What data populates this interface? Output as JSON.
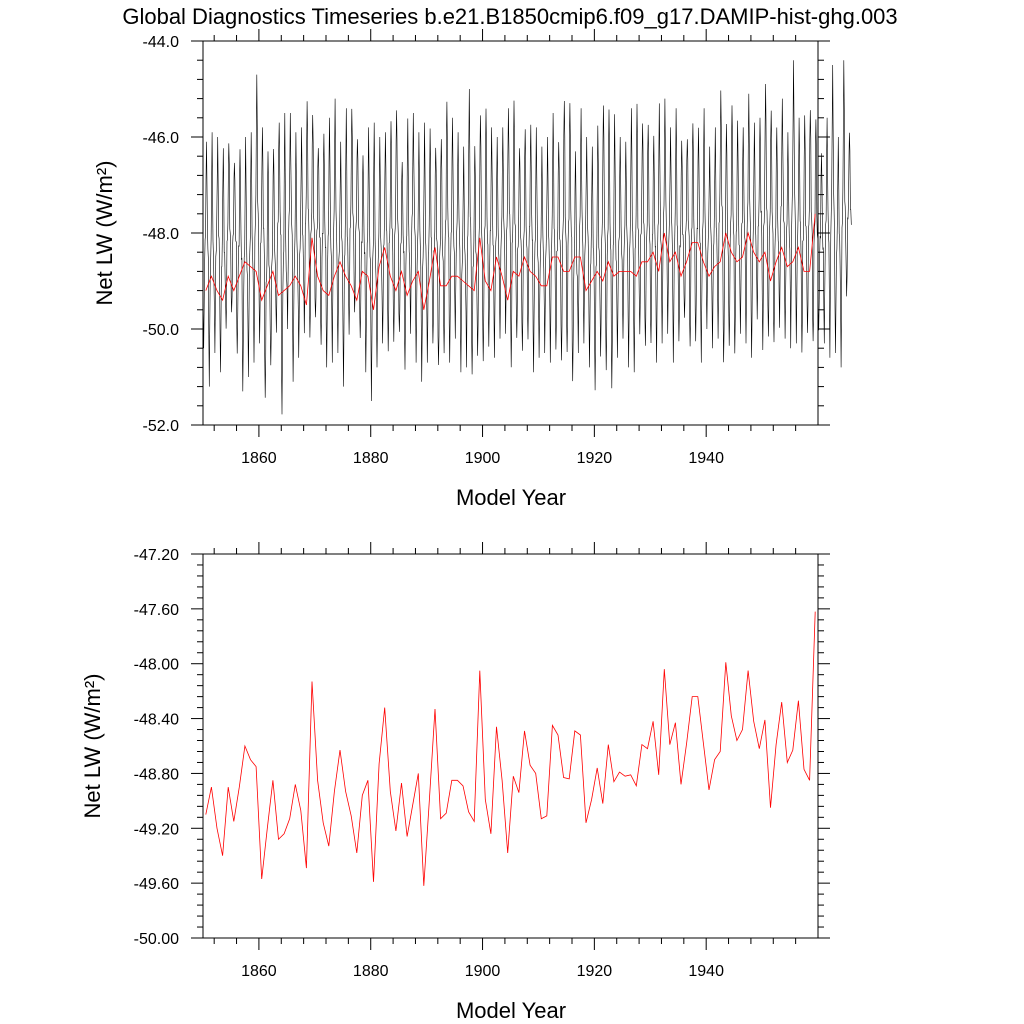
{
  "title": "Global Diagnostics Timeseries b.e21.B1850cmip6.f09_g17.DAMIP-hist-ghg.003",
  "colors": {
    "monthly": "#000000",
    "annual": "#ff0000"
  },
  "chart_data": [
    {
      "type": "line",
      "panel": "top",
      "xlabel": "Model Year",
      "ylabel": "Net LW (W/m²)",
      "xlim": [
        1850,
        1960
      ],
      "ylim": [
        -52.0,
        -44.0
      ],
      "x_ticks": [
        1860,
        1880,
        1900,
        1920,
        1940
      ],
      "x_tick_labels": [
        "1860",
        "1880",
        "1900",
        "1920",
        "1940"
      ],
      "y_ticks": [
        -52.0,
        -50.0,
        -48.0,
        -46.0,
        -44.0
      ],
      "y_tick_labels": [
        "-52.0",
        "-50.0",
        "-48.0",
        "-46.0",
        "-44.0"
      ],
      "series": [
        {
          "color": "#000000",
          "x_start": 1850.04,
          "x_step": 0.0833333,
          "seasonal_max": [
            -46.1,
            -45.9,
            -46.0,
            -46.2,
            -46.0,
            -46.4,
            -46.2,
            -46.0,
            -45.9,
            -44.7,
            -45.8,
            -46.2,
            -46.1,
            -45.6,
            -45.5,
            -45.5,
            -45.9,
            -45.8,
            -45.2,
            -45.4,
            -46.1,
            -45.9,
            -45.6,
            -45.2,
            -46.1,
            -45.4,
            -45.3,
            -45.9,
            -46.3,
            -45.8,
            -45.7,
            -46.0,
            -45.9,
            -45.6,
            -45.3,
            -46.4,
            -45.6,
            -45.5,
            -45.9,
            -45.7,
            -45.8,
            -46.1,
            -45.9,
            -45.2,
            -45.6,
            -45.9,
            -46.2,
            -45.0,
            -46.1,
            -45.4,
            -45.3,
            -45.8,
            -46.0,
            -45.8,
            -45.4,
            -45.2,
            -46.1,
            -45.7,
            -45.7,
            -45.8,
            -46.2,
            -46.0,
            -45.5,
            -46.0,
            -45.1,
            -45.2,
            -46.3,
            -45.4,
            -46.0,
            -46.2,
            -45.7,
            -45.2,
            -45.3,
            -45.5,
            -46.0,
            -46.1,
            -45.4,
            -45.3,
            -45.6,
            -45.6,
            -45.9,
            -45.3,
            -45.2,
            -45.8,
            -45.4,
            -46.0,
            -45.9,
            -45.6,
            -45.8,
            -45.4,
            -46.2,
            -45.8,
            -45.0,
            -45.6,
            -45.2,
            -45.6,
            -45.8,
            -45.1,
            -45.7,
            -45.6,
            -44.8,
            -45.3,
            -45.7,
            -45.2,
            -45.9,
            -44.4,
            -45.6,
            -45.5,
            -45.3,
            -45.5,
            -46.3,
            -45.6,
            -44.5,
            -46.0,
            -44.4,
            -45.8
          ],
          "seasonal_min": [
            -50.4,
            -51.2,
            -50.5,
            -50.9,
            -50.1,
            -49.8,
            -50.6,
            -51.3,
            -51.0,
            -50.7,
            -50.3,
            -51.5,
            -50.9,
            -50.2,
            -51.8,
            -50.0,
            -51.1,
            -50.6,
            -50.1,
            -50.3,
            -49.9,
            -50.4,
            -50.8,
            -50.7,
            -50.5,
            -51.2,
            -50.2,
            -49.8,
            -50.3,
            -50.9,
            -51.5,
            -50.8,
            -50.3,
            -50.5,
            -50.4,
            -50.2,
            -50.9,
            -50.1,
            -50.7,
            -51.1,
            -50.7,
            -50.4,
            -50.9,
            -50.6,
            -50.7,
            -50.2,
            -50.9,
            -50.8,
            -51.0,
            -50.7,
            -50.8,
            -50.4,
            -50.6,
            -50.2,
            -50.1,
            -50.8,
            -50.3,
            -50.6,
            -50.3,
            -50.9,
            -50.6,
            -50.5,
            -50.7,
            -50.5,
            -50.8,
            -50.6,
            -51.1,
            -50.5,
            -50.3,
            -50.8,
            -51.3,
            -50.7,
            -51.0,
            -51.3,
            -50.6,
            -50.2,
            -50.8,
            -50.9,
            -50.2,
            -50.5,
            -50.4,
            -50.7,
            -50.3,
            -50.1,
            -50.7,
            -50.3,
            -49.9,
            -50.5,
            -50.3,
            -50.7,
            -50.0,
            -50.4,
            -50.2,
            -50.8,
            -50.5,
            -50.6,
            -50.1,
            -50.3,
            -50.6,
            -49.8,
            -50.5,
            -50.3,
            -50.4,
            -50.0,
            -50.2,
            -50.4,
            -50.3,
            -50.5,
            -50.2,
            -50.4,
            -50.1,
            -50.3,
            -50.6,
            -50.5,
            -50.8,
            -49.4
          ]
        },
        {
          "color": "#ff0000",
          "x_start": 1850.5,
          "x_step": 1,
          "values": [
            -49.2,
            -48.9,
            -49.2,
            -49.4,
            -48.9,
            -49.2,
            -48.9,
            -48.6,
            -48.7,
            -48.8,
            -49.4,
            -49.1,
            -48.8,
            -49.3,
            -49.2,
            -49.1,
            -48.9,
            -49.1,
            -49.5,
            -48.1,
            -48.9,
            -49.2,
            -49.3,
            -48.9,
            -48.6,
            -48.9,
            -49.1,
            -49.4,
            -48.8,
            -48.9,
            -49.6,
            -48.7,
            -48.3,
            -48.9,
            -49.2,
            -48.8,
            -49.3,
            -49.0,
            -48.8,
            -49.6,
            -49.0,
            -48.3,
            -49.1,
            -49.1,
            -48.9,
            -48.9,
            -49.0,
            -49.1,
            -49.2,
            -48.1,
            -49.0,
            -49.2,
            -48.5,
            -48.9,
            -49.4,
            -48.8,
            -48.9,
            -48.5,
            -48.8,
            -48.9,
            -49.1,
            -49.1,
            -48.5,
            -48.5,
            -48.8,
            -48.8,
            -48.5,
            -48.5,
            -49.2,
            -49.0,
            -48.8,
            -49.0,
            -48.6,
            -48.9,
            -48.8,
            -48.8,
            -48.8,
            -48.9,
            -48.6,
            -48.6,
            -48.4,
            -48.8,
            -48.0,
            -48.6,
            -48.4,
            -48.9,
            -48.6,
            -48.2,
            -48.2,
            -48.6,
            -48.9,
            -48.7,
            -48.6,
            -48.0,
            -48.4,
            -48.6,
            -48.5,
            -48.0,
            -48.4,
            -48.6,
            -48.4,
            -49.0,
            -48.6,
            -48.3,
            -48.7,
            -48.6,
            -48.3,
            -48.8,
            -48.8,
            -47.6
          ]
        }
      ]
    },
    {
      "type": "line",
      "panel": "bottom",
      "xlabel": "Model Year",
      "ylabel": "Net LW (W/m²)",
      "xlim": [
        1850,
        1960
      ],
      "ylim": [
        -50.0,
        -47.2
      ],
      "x_ticks": [
        1860,
        1880,
        1900,
        1920,
        1940
      ],
      "x_tick_labels": [
        "1860",
        "1880",
        "1900",
        "1920",
        "1940"
      ],
      "y_ticks": [
        -50.0,
        -49.6,
        -49.2,
        -48.8,
        -48.4,
        -48.0,
        -47.6,
        -47.2
      ],
      "y_tick_labels": [
        "-50.00",
        "-49.60",
        "-49.20",
        "-48.80",
        "-48.40",
        "-48.00",
        "-47.60",
        "-47.20"
      ],
      "series": [
        {
          "color": "#ff0000",
          "x_start": 1850.5,
          "x_step": 1,
          "values": [
            -49.1,
            -48.9,
            -49.2,
            -49.4,
            -48.9,
            -49.15,
            -48.9,
            -48.6,
            -48.7,
            -48.75,
            -49.57,
            -49.2,
            -48.85,
            -49.28,
            -49.24,
            -49.13,
            -48.88,
            -49.07,
            -49.49,
            -48.13,
            -48.85,
            -49.16,
            -49.33,
            -48.93,
            -48.63,
            -48.93,
            -49.11,
            -49.38,
            -48.96,
            -48.85,
            -49.59,
            -48.73,
            -48.32,
            -48.93,
            -49.22,
            -48.87,
            -49.26,
            -49.03,
            -48.8,
            -49.62,
            -48.99,
            -48.33,
            -49.13,
            -49.09,
            -48.85,
            -48.85,
            -48.89,
            -49.08,
            -49.15,
            -48.05,
            -48.99,
            -49.24,
            -48.46,
            -48.85,
            -49.38,
            -48.82,
            -48.94,
            -48.49,
            -48.74,
            -48.8,
            -49.13,
            -49.11,
            -48.45,
            -48.52,
            -48.83,
            -48.84,
            -48.49,
            -48.52,
            -49.16,
            -48.99,
            -48.76,
            -49.02,
            -48.59,
            -48.86,
            -48.79,
            -48.82,
            -48.81,
            -48.89,
            -48.59,
            -48.62,
            -48.42,
            -48.81,
            -48.04,
            -48.59,
            -48.43,
            -48.88,
            -48.58,
            -48.24,
            -48.24,
            -48.58,
            -48.92,
            -48.7,
            -48.64,
            -47.99,
            -48.38,
            -48.56,
            -48.48,
            -48.05,
            -48.42,
            -48.62,
            -48.41,
            -49.05,
            -48.59,
            -48.28,
            -48.72,
            -48.63,
            -48.27,
            -48.77,
            -48.85,
            -47.62
          ]
        }
      ]
    }
  ]
}
